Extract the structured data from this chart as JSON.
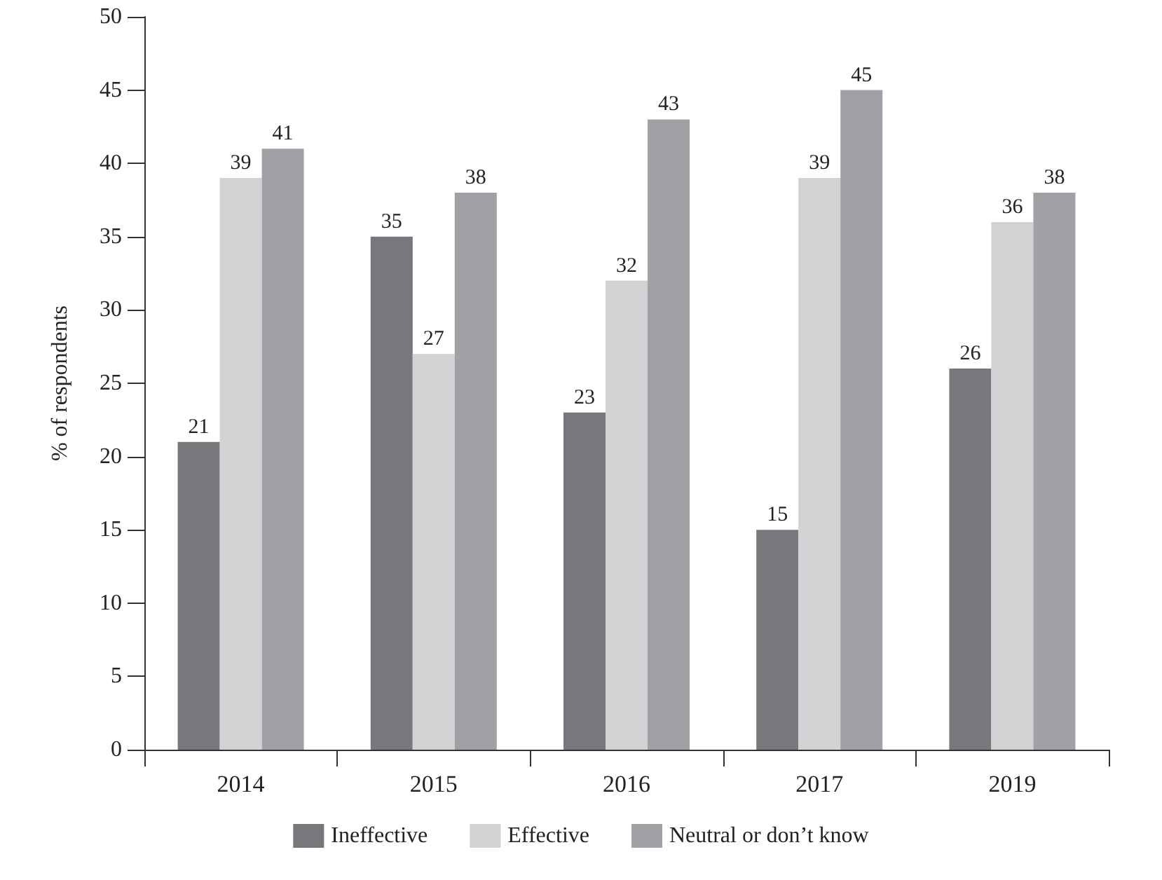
{
  "chart_data": {
    "type": "bar",
    "ylabel": "% of respondents",
    "categories": [
      "2014",
      "2015",
      "2016",
      "2017",
      "2019"
    ],
    "series": [
      {
        "name": "Ineffective",
        "color": "#77787b",
        "values": [
          21,
          35,
          23,
          15,
          26
        ]
      },
      {
        "name": "Effective",
        "color": "#d1d2d4",
        "values": [
          39,
          27,
          32,
          39,
          36
        ]
      },
      {
        "name": "Neutral or don’t know",
        "color": "#a0a1a4",
        "values": [
          41,
          38,
          43,
          45,
          38
        ]
      }
    ],
    "ylim": [
      0,
      50
    ],
    "yticks": [
      0,
      5,
      10,
      15,
      20,
      25,
      30,
      35,
      40,
      45,
      50
    ],
    "data_labels": true,
    "grid": false,
    "legend": "bottom"
  }
}
